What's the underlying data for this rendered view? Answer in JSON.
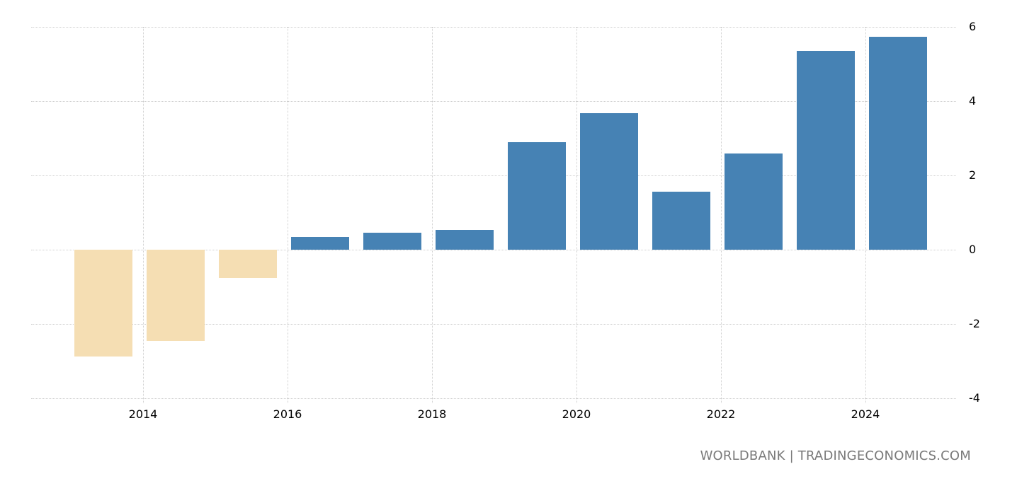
{
  "chart_data": {
    "type": "bar",
    "title": "",
    "xlabel": "",
    "ylabel": "",
    "categories": [
      "2013",
      "2014",
      "2015",
      "2016",
      "2017",
      "2018",
      "2019",
      "2020",
      "2021",
      "2022",
      "2023",
      "2024"
    ],
    "values": [
      -2.88,
      -2.46,
      -0.76,
      0.34,
      0.46,
      0.53,
      2.9,
      3.68,
      1.56,
      2.59,
      5.35,
      5.73
    ],
    "ylim": [
      -4,
      6
    ],
    "yticks": [
      "6",
      "4",
      "2",
      "0",
      "-2",
      "-4"
    ],
    "xticks": [
      "2014",
      "2016",
      "2018",
      "2020",
      "2022",
      "2024"
    ],
    "grid": true,
    "legend": null,
    "colors": {
      "positive": "#4682b4",
      "negative": "#f5deb3"
    }
  },
  "source": "WORLDBANK | TRADINGECONOMICS.COM"
}
